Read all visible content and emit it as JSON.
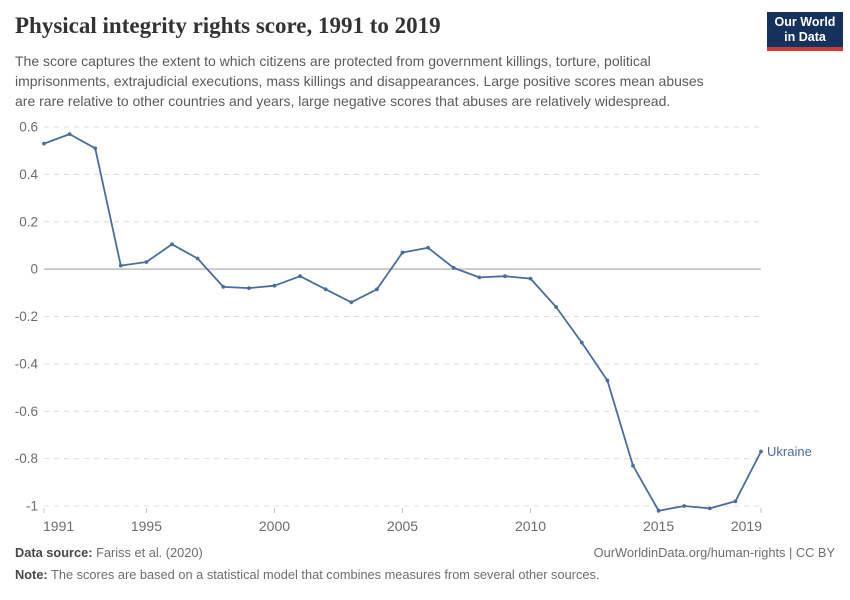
{
  "header": {
    "title": "Physical integrity rights score, 1991 to 2019",
    "subtitle_lines": [
      "The score captures the extent to which citizens are protected from government killings, torture, political",
      "imprisonments, extrajudicial executions, mass killings and disappearances. Large positive scores mean abuses",
      "are rare relative to other countries and years, large negative scores that abuses are relatively widespread."
    ],
    "logo": {
      "line1": "Our World",
      "line2": "in Data"
    }
  },
  "chart_data": {
    "type": "line",
    "title": "Physical integrity rights score, 1991 to 2019",
    "xlabel": "",
    "ylabel": "",
    "xlim": [
      1991,
      2019
    ],
    "ylim": [
      -1,
      0.6
    ],
    "grid": "dashed horizontal gridlines, solid zero line",
    "legend_position": "end-of-line label",
    "x_ticks": [
      1991,
      1995,
      2000,
      2005,
      2010,
      2015,
      2019
    ],
    "y_ticks": [
      0.6,
      0.4,
      0.2,
      0,
      -0.2,
      -0.4,
      -0.6,
      -0.8,
      -1
    ],
    "y_tick_labels": [
      "0.6",
      "0.4",
      "0.2",
      "0",
      "-0.2",
      "-0.4",
      "-0.6",
      "-0.8",
      "-1"
    ],
    "series": [
      {
        "name": "Ukraine",
        "color": "#4a6d9f",
        "x": [
          1991,
          1992,
          1993,
          1994,
          1995,
          1996,
          1997,
          1998,
          1999,
          2000,
          2001,
          2002,
          2003,
          2004,
          2005,
          2006,
          2007,
          2008,
          2009,
          2010,
          2011,
          2012,
          2013,
          2014,
          2015,
          2016,
          2017,
          2018,
          2019
        ],
        "values": [
          0.53,
          0.57,
          0.51,
          0.015,
          0.03,
          0.105,
          0.045,
          -0.075,
          -0.08,
          -0.07,
          -0.03,
          -0.085,
          -0.14,
          -0.085,
          0.07,
          0.09,
          0.005,
          -0.035,
          -0.03,
          -0.04,
          -0.16,
          -0.31,
          -0.47,
          -0.83,
          -1.02,
          -1.0,
          -1.01,
          -0.98,
          -0.77
        ]
      }
    ]
  },
  "footer": {
    "source_label": "Data source:",
    "source_value": "Fariss et al. (2020)",
    "attribution": "OurWorldinData.org/human-rights | CC BY",
    "note_label": "Note:",
    "note_value": "The scores are based on a statistical model that combines measures from several other sources."
  },
  "colors": {
    "line": "#4a6d9f",
    "grid": "#dcdcdc",
    "zero_line": "#bdbdbd",
    "tick": "#c4c4c4",
    "axis_label": "#6d6d6d",
    "logo_bg": "#16325c",
    "logo_stripe": "#cb3d33"
  }
}
